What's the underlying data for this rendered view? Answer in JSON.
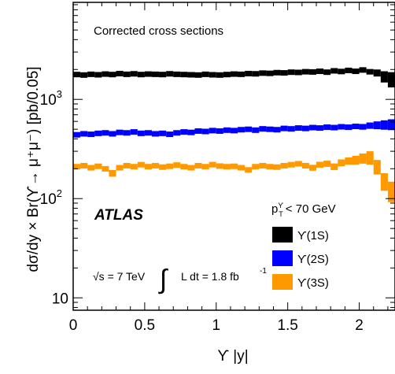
{
  "chart_data": {
    "type": "scatter",
    "xlabel": "ϒ |y|",
    "ylabel": "dσ/dy × Br(ϒ→ μ⁺μ⁻) [pb/0.05]",
    "xlim": [
      0,
      2.25
    ],
    "ylim": [
      7.5,
      9500
    ],
    "yscale": "log",
    "grid": false,
    "legend_position": "bottom-right",
    "legend_title": "p_T^ϒ < 70 GeV",
    "x_ticks": [
      {
        "value": 0,
        "label": "0"
      },
      {
        "value": 0.5,
        "label": "0.5"
      },
      {
        "value": 1,
        "label": "1"
      },
      {
        "value": 1.5,
        "label": "1.5"
      },
      {
        "value": 2,
        "label": "2"
      }
    ],
    "y_ticks": [
      {
        "value": 10,
        "base": "10",
        "exp": ""
      },
      {
        "value": 100,
        "base": "10",
        "exp": "2"
      },
      {
        "value": 1000,
        "base": "10",
        "exp": "3"
      }
    ],
    "annotations": {
      "title_box": "Corrected cross sections",
      "experiment": "ATLAS",
      "energy": "√s = 7 TeV",
      "lumi_text": "L dt = 1.8 fb",
      "lumi_exp": "-1"
    },
    "bin_width": 0.05,
    "x": [
      0.025,
      0.075,
      0.125,
      0.175,
      0.225,
      0.275,
      0.325,
      0.375,
      0.425,
      0.475,
      0.525,
      0.575,
      0.625,
      0.675,
      0.725,
      0.775,
      0.825,
      0.875,
      0.925,
      0.975,
      1.025,
      1.075,
      1.125,
      1.175,
      1.225,
      1.275,
      1.325,
      1.375,
      1.425,
      1.475,
      1.525,
      1.575,
      1.625,
      1.675,
      1.725,
      1.775,
      1.825,
      1.875,
      1.925,
      1.975,
      2.025,
      2.075,
      2.125,
      2.175,
      2.225
    ],
    "series": [
      {
        "name": "ϒ(1S)",
        "color": "#000000",
        "values": [
          1780,
          1760,
          1790,
          1770,
          1800,
          1780,
          1820,
          1790,
          1810,
          1780,
          1800,
          1790,
          1780,
          1810,
          1790,
          1780,
          1770,
          1760,
          1790,
          1770,
          1760,
          1780,
          1800,
          1790,
          1820,
          1810,
          1840,
          1830,
          1860,
          1850,
          1880,
          1870,
          1900,
          1890,
          1920,
          1880,
          1940,
          1910,
          1960,
          1920,
          1980,
          1900,
          1850,
          1700,
          1600
        ],
        "err": [
          50,
          50,
          50,
          50,
          50,
          50,
          50,
          50,
          50,
          50,
          50,
          50,
          50,
          50,
          50,
          50,
          50,
          50,
          50,
          50,
          50,
          50,
          50,
          50,
          50,
          50,
          50,
          50,
          50,
          50,
          60,
          60,
          60,
          60,
          60,
          60,
          70,
          70,
          70,
          70,
          90,
          110,
          150,
          220,
          280
        ]
      },
      {
        "name": "ϒ(2S)",
        "color": "#0000ff",
        "values": [
          440,
          450,
          445,
          455,
          460,
          450,
          465,
          460,
          470,
          455,
          460,
          450,
          455,
          445,
          460,
          470,
          465,
          480,
          475,
          485,
          480,
          490,
          485,
          495,
          500,
          490,
          505,
          500,
          495,
          510,
          505,
          515,
          510,
          520,
          515,
          525,
          520,
          530,
          525,
          535,
          530,
          545,
          550,
          555,
          560
        ],
        "err": [
          20,
          20,
          20,
          20,
          20,
          20,
          20,
          20,
          20,
          20,
          20,
          20,
          20,
          20,
          20,
          20,
          20,
          20,
          20,
          20,
          20,
          20,
          20,
          20,
          20,
          20,
          20,
          20,
          20,
          20,
          22,
          22,
          22,
          22,
          24,
          24,
          26,
          28,
          30,
          32,
          35,
          40,
          50,
          60,
          70
        ]
      },
      {
        "name": "ϒ(3S)",
        "color": "#ff9900",
        "values": [
          210,
          215,
          205,
          212,
          200,
          180,
          205,
          215,
          210,
          220,
          210,
          215,
          208,
          212,
          218,
          210,
          205,
          215,
          210,
          220,
          213,
          210,
          212,
          205,
          195,
          210,
          215,
          210,
          208,
          215,
          220,
          225,
          215,
          205,
          220,
          225,
          210,
          230,
          240,
          245,
          255,
          260,
          210,
          150,
          120
        ],
        "err": [
          12,
          12,
          12,
          12,
          12,
          14,
          12,
          12,
          12,
          12,
          12,
          12,
          12,
          12,
          12,
          12,
          12,
          12,
          12,
          12,
          12,
          12,
          12,
          12,
          12,
          12,
          12,
          12,
          12,
          12,
          14,
          14,
          14,
          14,
          15,
          16,
          16,
          18,
          20,
          25,
          30,
          40,
          35,
          30,
          28
        ]
      }
    ]
  }
}
